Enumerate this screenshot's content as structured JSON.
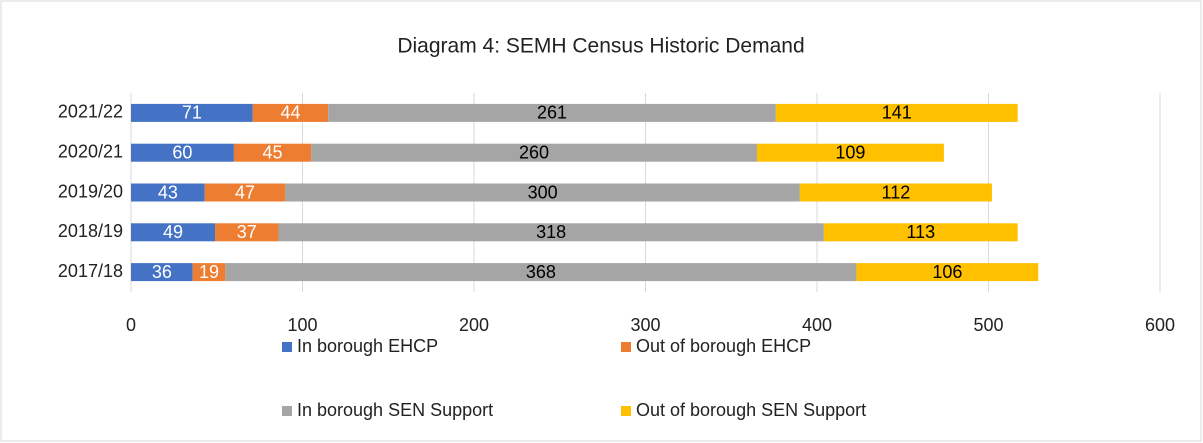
{
  "chart_data": {
    "type": "stacked-bar-horizontal",
    "title": "Diagram 4: SEMH Census Historic Demand",
    "categories": [
      "2021/22",
      "2020/21",
      "2019/20",
      "2018/19",
      "2017/18"
    ],
    "series": [
      {
        "name": "In borough EHCP",
        "color": "#4472c4",
        "label_color": "#ffffff",
        "values": [
          71,
          60,
          43,
          49,
          36
        ]
      },
      {
        "name": "Out of borough EHCP",
        "color": "#ed7d31",
        "label_color": "#ffffff",
        "values": [
          44,
          45,
          47,
          37,
          19
        ]
      },
      {
        "name": "In borough SEN Support",
        "color": "#a5a5a5",
        "label_color": "#000000",
        "values": [
          261,
          260,
          300,
          318,
          368
        ]
      },
      {
        "name": "Out of borough SEN Support",
        "color": "#ffc000",
        "label_color": "#000000",
        "values": [
          141,
          109,
          112,
          113,
          106
        ]
      }
    ],
    "xlim": [
      0,
      600
    ],
    "xticks": [
      0,
      100,
      200,
      300,
      400,
      500,
      600
    ],
    "grid": true,
    "legend": "bottom"
  }
}
